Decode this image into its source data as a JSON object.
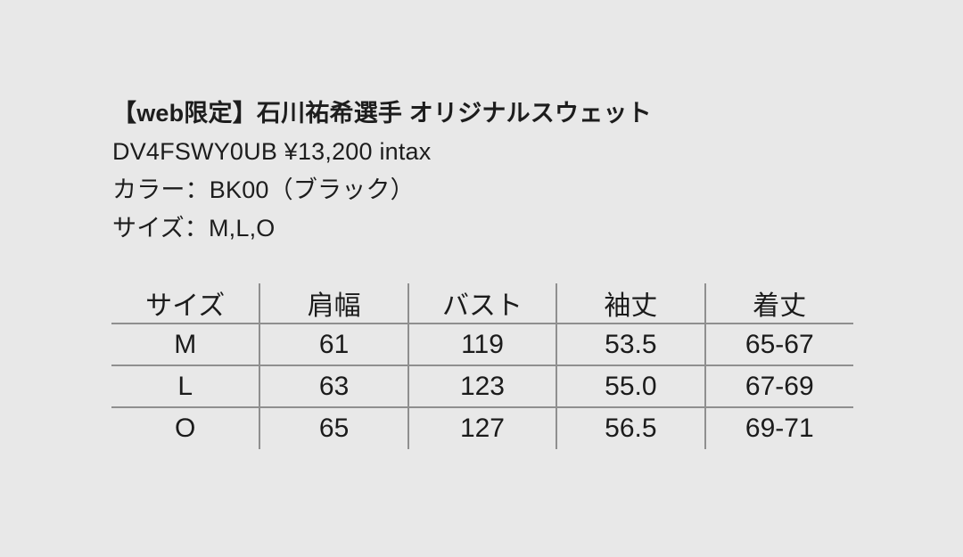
{
  "colors": {
    "background": "#e8e8e8",
    "text": "#1d1d1d",
    "table_line": "#8f8f8f"
  },
  "product": {
    "title": "【web限定】石川祐希選手 オリジナルスウェット",
    "sku_price": "DV4FSWY0UB ¥13,200 intax",
    "color": "カラー：BK00（ブラック）",
    "sizes": "サイズ：M,L,O"
  },
  "size_table": {
    "columns": [
      "サイズ",
      "肩幅",
      "バスト",
      "袖丈",
      "着丈"
    ],
    "rows": [
      {
        "cells": [
          "M",
          "61",
          "119",
          "53.5",
          "65-67"
        ]
      },
      {
        "cells": [
          "L",
          "63",
          "123",
          "55.0",
          "67-69"
        ]
      },
      {
        "cells": [
          "O",
          "65",
          "127",
          "56.5",
          "69-71"
        ]
      }
    ]
  }
}
